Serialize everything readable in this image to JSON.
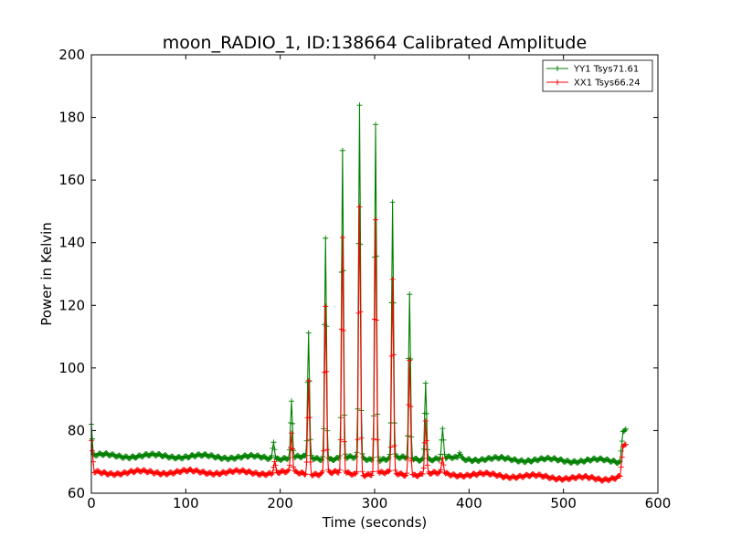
{
  "chart_data": {
    "type": "line",
    "title": "moon_RADIO_1, ID:138664 Calibrated Amplitude",
    "xlabel": "Time (seconds)",
    "ylabel": "Power in Kelvin",
    "xlim": [
      0,
      600
    ],
    "ylim": [
      60,
      200
    ],
    "x_ticks": [
      0,
      100,
      200,
      300,
      400,
      500,
      600
    ],
    "y_ticks": [
      60,
      80,
      100,
      120,
      140,
      160,
      180,
      200
    ],
    "grid": false,
    "legend_position": "top-right",
    "marker": "+",
    "series": [
      {
        "name": "YY1 Tsys71.61",
        "color": "#008000",
        "baseline": [
          [
            0,
            82
          ],
          [
            2,
            72
          ],
          [
            100,
            71.8
          ],
          [
            200,
            71.3
          ],
          [
            300,
            71.0
          ],
          [
            400,
            71.0
          ],
          [
            500,
            70.5
          ],
          [
            560,
            70.3
          ],
          [
            563,
            80.5
          ],
          [
            566,
            80.8
          ]
        ],
        "peaks": [
          [
            193,
            77
          ],
          [
            212,
            89
          ],
          [
            230,
            111
          ],
          [
            248,
            142
          ],
          [
            266,
            169
          ],
          [
            284,
            184
          ],
          [
            301,
            178
          ],
          [
            319,
            153
          ],
          [
            337,
            123
          ],
          [
            354,
            96
          ],
          [
            372,
            80
          ],
          [
            390,
            73
          ]
        ]
      },
      {
        "name": "XX1 Tsys66.24",
        "color": "#ff0000",
        "baseline": [
          [
            0,
            76
          ],
          [
            3,
            66.5
          ],
          [
            100,
            66.8
          ],
          [
            200,
            66.5
          ],
          [
            300,
            66.2
          ],
          [
            400,
            66.0
          ],
          [
            500,
            65.0
          ],
          [
            540,
            64.5
          ],
          [
            560,
            65.5
          ],
          [
            563,
            75
          ],
          [
            566,
            75
          ]
        ],
        "peaks": [
          [
            194,
            70
          ],
          [
            212,
            79
          ],
          [
            230,
            96
          ],
          [
            248,
            120
          ],
          [
            266,
            141
          ],
          [
            284,
            152
          ],
          [
            301,
            147
          ],
          [
            319,
            128
          ],
          [
            337,
            103
          ],
          [
            354,
            83
          ],
          [
            372,
            71
          ]
        ]
      }
    ]
  }
}
